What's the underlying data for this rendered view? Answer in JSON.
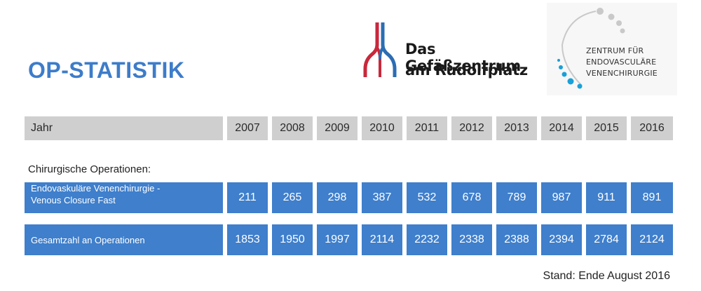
{
  "title": "OP-STATISTIK",
  "logo_gefaesszentrum": {
    "line1": "Das Gefäßzentrum",
    "line2": "am Rudolfplatz"
  },
  "logo_endovascular": {
    "line1": "ZENTRUM FÜR",
    "line2": "ENDOVASCULÄRE",
    "line3": "VENENCHIRURGIE"
  },
  "year_row": {
    "label": "Jahr",
    "years": [
      "2007",
      "2008",
      "2009",
      "2010",
      "2011",
      "2012",
      "2013",
      "2014",
      "2015",
      "2016"
    ]
  },
  "section_label": "Chirurgische Operationen:",
  "rows": [
    {
      "label_line1": "Endovaskuläre Venenchirurgie -",
      "label_line2": "Venous Closure Fast",
      "values": [
        "211",
        "265",
        "298",
        "387",
        "532",
        "678",
        "789",
        "987",
        "911",
        "891"
      ]
    },
    {
      "label_line1": "Gesamtzahl an Operationen",
      "label_line2": "",
      "values": [
        "1853",
        "1950",
        "1997",
        "2114",
        "2232",
        "2338",
        "2388",
        "2394",
        "2784",
        "2124"
      ]
    }
  ],
  "footer": "Stand: Ende August 2016",
  "colors": {
    "title_blue": "#3d7cc9",
    "cell_blue": "#3f7fcc",
    "cell_gray": "#cfcfcf",
    "logo_red": "#c8283c",
    "logo_blue": "#2b6db3",
    "dot_cyan": "#1aa0d8"
  }
}
